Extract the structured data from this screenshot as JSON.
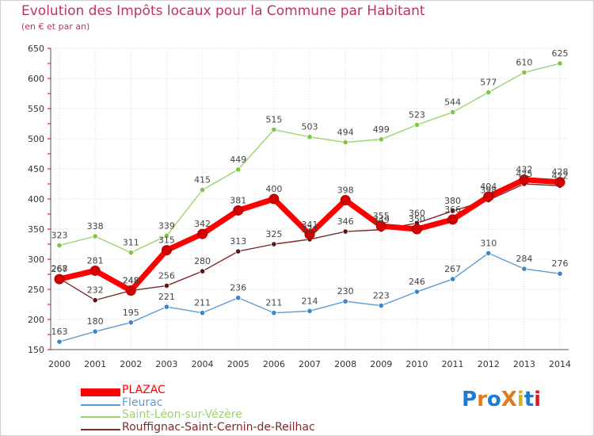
{
  "title": "Evolution des Impôts locaux pour la Commune par Habitant",
  "subtitle": "(en € et par an)",
  "logo": {
    "text": "ProXiti",
    "colors": [
      "#1e7bd4",
      "#e07a1a",
      "#1e7bd4",
      "#e07a1a",
      "#d4b21e",
      "#1e7bd4",
      "#d01e2a"
    ]
  },
  "chart_data": {
    "type": "line",
    "title": "Evolution des Impôts locaux pour la Commune par Habitant",
    "subtitle": "(en € et par an)",
    "xlabel": "",
    "ylabel": "",
    "ylim": [
      150,
      650
    ],
    "yticks": [
      150,
      200,
      250,
      300,
      350,
      400,
      450,
      500,
      550,
      600,
      650
    ],
    "categories": [
      "2000",
      "2001",
      "2002",
      "2003",
      "2004",
      "2005",
      "2006",
      "2007",
      "2008",
      "2009",
      "2010",
      "2011",
      "2012",
      "2013",
      "2014"
    ],
    "grid": true,
    "legend_position": "bottom-left",
    "series": [
      {
        "name": "Fleurac",
        "color": "#5b9bd5",
        "marker": "#3d86c6",
        "values": [
          163,
          180,
          195,
          221,
          211,
          236,
          211,
          214,
          230,
          223,
          246,
          267,
          310,
          284,
          276
        ]
      },
      {
        "name": "Saint-Léon-sur-Vézère",
        "color": "#9bd46e",
        "marker": "#7cc845",
        "values": [
          323,
          338,
          311,
          339,
          415,
          449,
          515,
          503,
          494,
          499,
          523,
          544,
          577,
          610,
          625
        ]
      },
      {
        "name": "Rouffignac-Saint-Cernin-de-Reilhac",
        "color": "#7d2a2a",
        "marker": "#5a1616",
        "values": [
          268,
          232,
          248,
          256,
          280,
          313,
          325,
          333,
          346,
          349,
          360,
          380,
          398,
          425,
          422
        ]
      },
      {
        "name": "PLAZAC",
        "color": "#ff0000",
        "marker": "#d20000",
        "values": [
          267,
          281,
          248,
          315,
          342,
          381,
          400,
          341,
          398,
          355,
          350,
          366,
          404,
          432,
          428
        ]
      }
    ]
  }
}
